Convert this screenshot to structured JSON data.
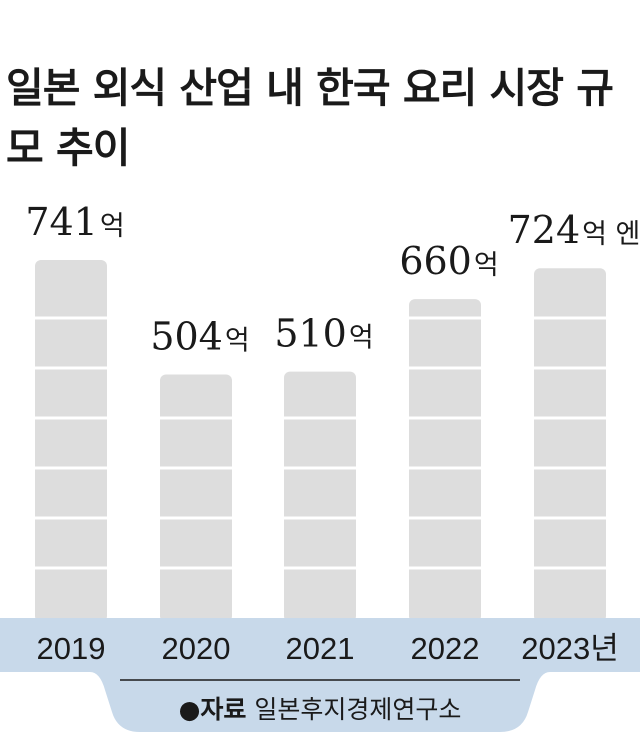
{
  "chart_data": {
    "type": "bar",
    "title": "일본 외식 산업 내 한국 요리 시장 규모 추이",
    "categories": [
      "2019",
      "2020",
      "2021",
      "2022",
      "2023"
    ],
    "category_labels": [
      "2019",
      "2020",
      "2021",
      "2022",
      "2023년"
    ],
    "values": [
      741,
      504,
      510,
      660,
      724
    ],
    "value_labels": [
      {
        "num": "741",
        "unit": "억"
      },
      {
        "num": "504",
        "unit": "억"
      },
      {
        "num": "510",
        "unit": "억"
      },
      {
        "num": "660",
        "unit": "억"
      },
      {
        "num": "724",
        "unit": "억 엔"
      }
    ],
    "unit": "억 엔",
    "ylim": [
      0,
      900
    ],
    "grid": false,
    "bar_color": "#dddddd",
    "band_color": "#c8d9ea"
  },
  "source": {
    "marker": "●",
    "label": "자료",
    "text": "일본후지경제연구소"
  }
}
